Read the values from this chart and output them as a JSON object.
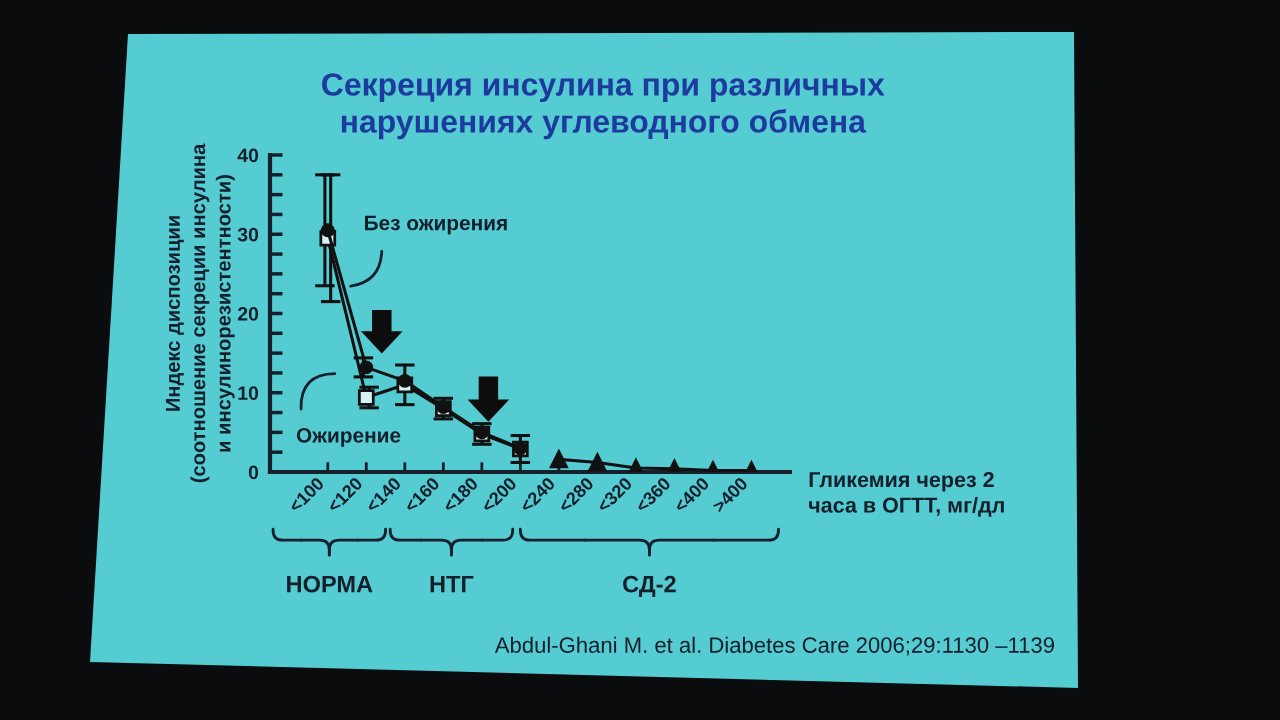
{
  "chart_data": {
    "type": "line",
    "title": "Секреция инсулина при различных\nнарушениях углеводного обмена",
    "xlabel": "Гликемия через 2\nчаса в ОГТТ, мг/дл",
    "ylabel": "Индекс диспозиции\n(соотношение секреции инсулина\nи инсулинорезистентности)",
    "categories": [
      "<100",
      "<120",
      "<140",
      "<160",
      "<180",
      "<200",
      "<240",
      "<280",
      "<320",
      "<360",
      "<400",
      ">400"
    ],
    "series": [
      {
        "name": "Без ожирения",
        "color": "#111111",
        "marker": "circle",
        "values": [
          30.5,
          13.2,
          11.5,
          8.2,
          5.0,
          3.0,
          null,
          null,
          null,
          null,
          null,
          null
        ],
        "errors": [
          7,
          1.2,
          null,
          null,
          null,
          null,
          null,
          null,
          null,
          null,
          null,
          null
        ]
      },
      {
        "name": "Ожирение",
        "color": "#111111",
        "marker": "square",
        "values": [
          29.5,
          9.4,
          11.0,
          8.0,
          4.8,
          2.9,
          null,
          null,
          null,
          null,
          null,
          null
        ],
        "errors": [
          8,
          1.3,
          2.5,
          1.3,
          1.3,
          1.7,
          null,
          null,
          null,
          null,
          null,
          null
        ]
      },
      {
        "color": "#111111",
        "marker": "triangle",
        "values": [
          null,
          null,
          null,
          null,
          null,
          null,
          1.6,
          1.2,
          0.5,
          0.4,
          0.2,
          0.2
        ]
      }
    ],
    "ylim": [
      0,
      40
    ],
    "yticks": [
      0,
      {
        "value": 2.5,
        "label": null
      },
      {
        "value": 5,
        "label": null
      },
      {
        "value": 7.5,
        "label": null
      },
      10,
      {
        "value": 12.5,
        "label": null
      },
      {
        "value": 15,
        "label": null
      },
      {
        "value": 17.5,
        "label": null
      },
      20,
      {
        "value": 22.5,
        "label": null
      },
      {
        "value": 25,
        "label": null
      },
      {
        "value": 27.5,
        "label": null
      },
      30,
      {
        "value": 32.5,
        "label": null
      },
      {
        "value": 35,
        "label": null
      },
      {
        "value": 37.5,
        "label": null
      },
      40
    ],
    "annotations": [
      "НОРМА",
      "НТГ",
      "СД-2",
      "Abdul-Ghani M. et al. Diabetes Care 2006;29:1130 –1139"
    ]
  }
}
